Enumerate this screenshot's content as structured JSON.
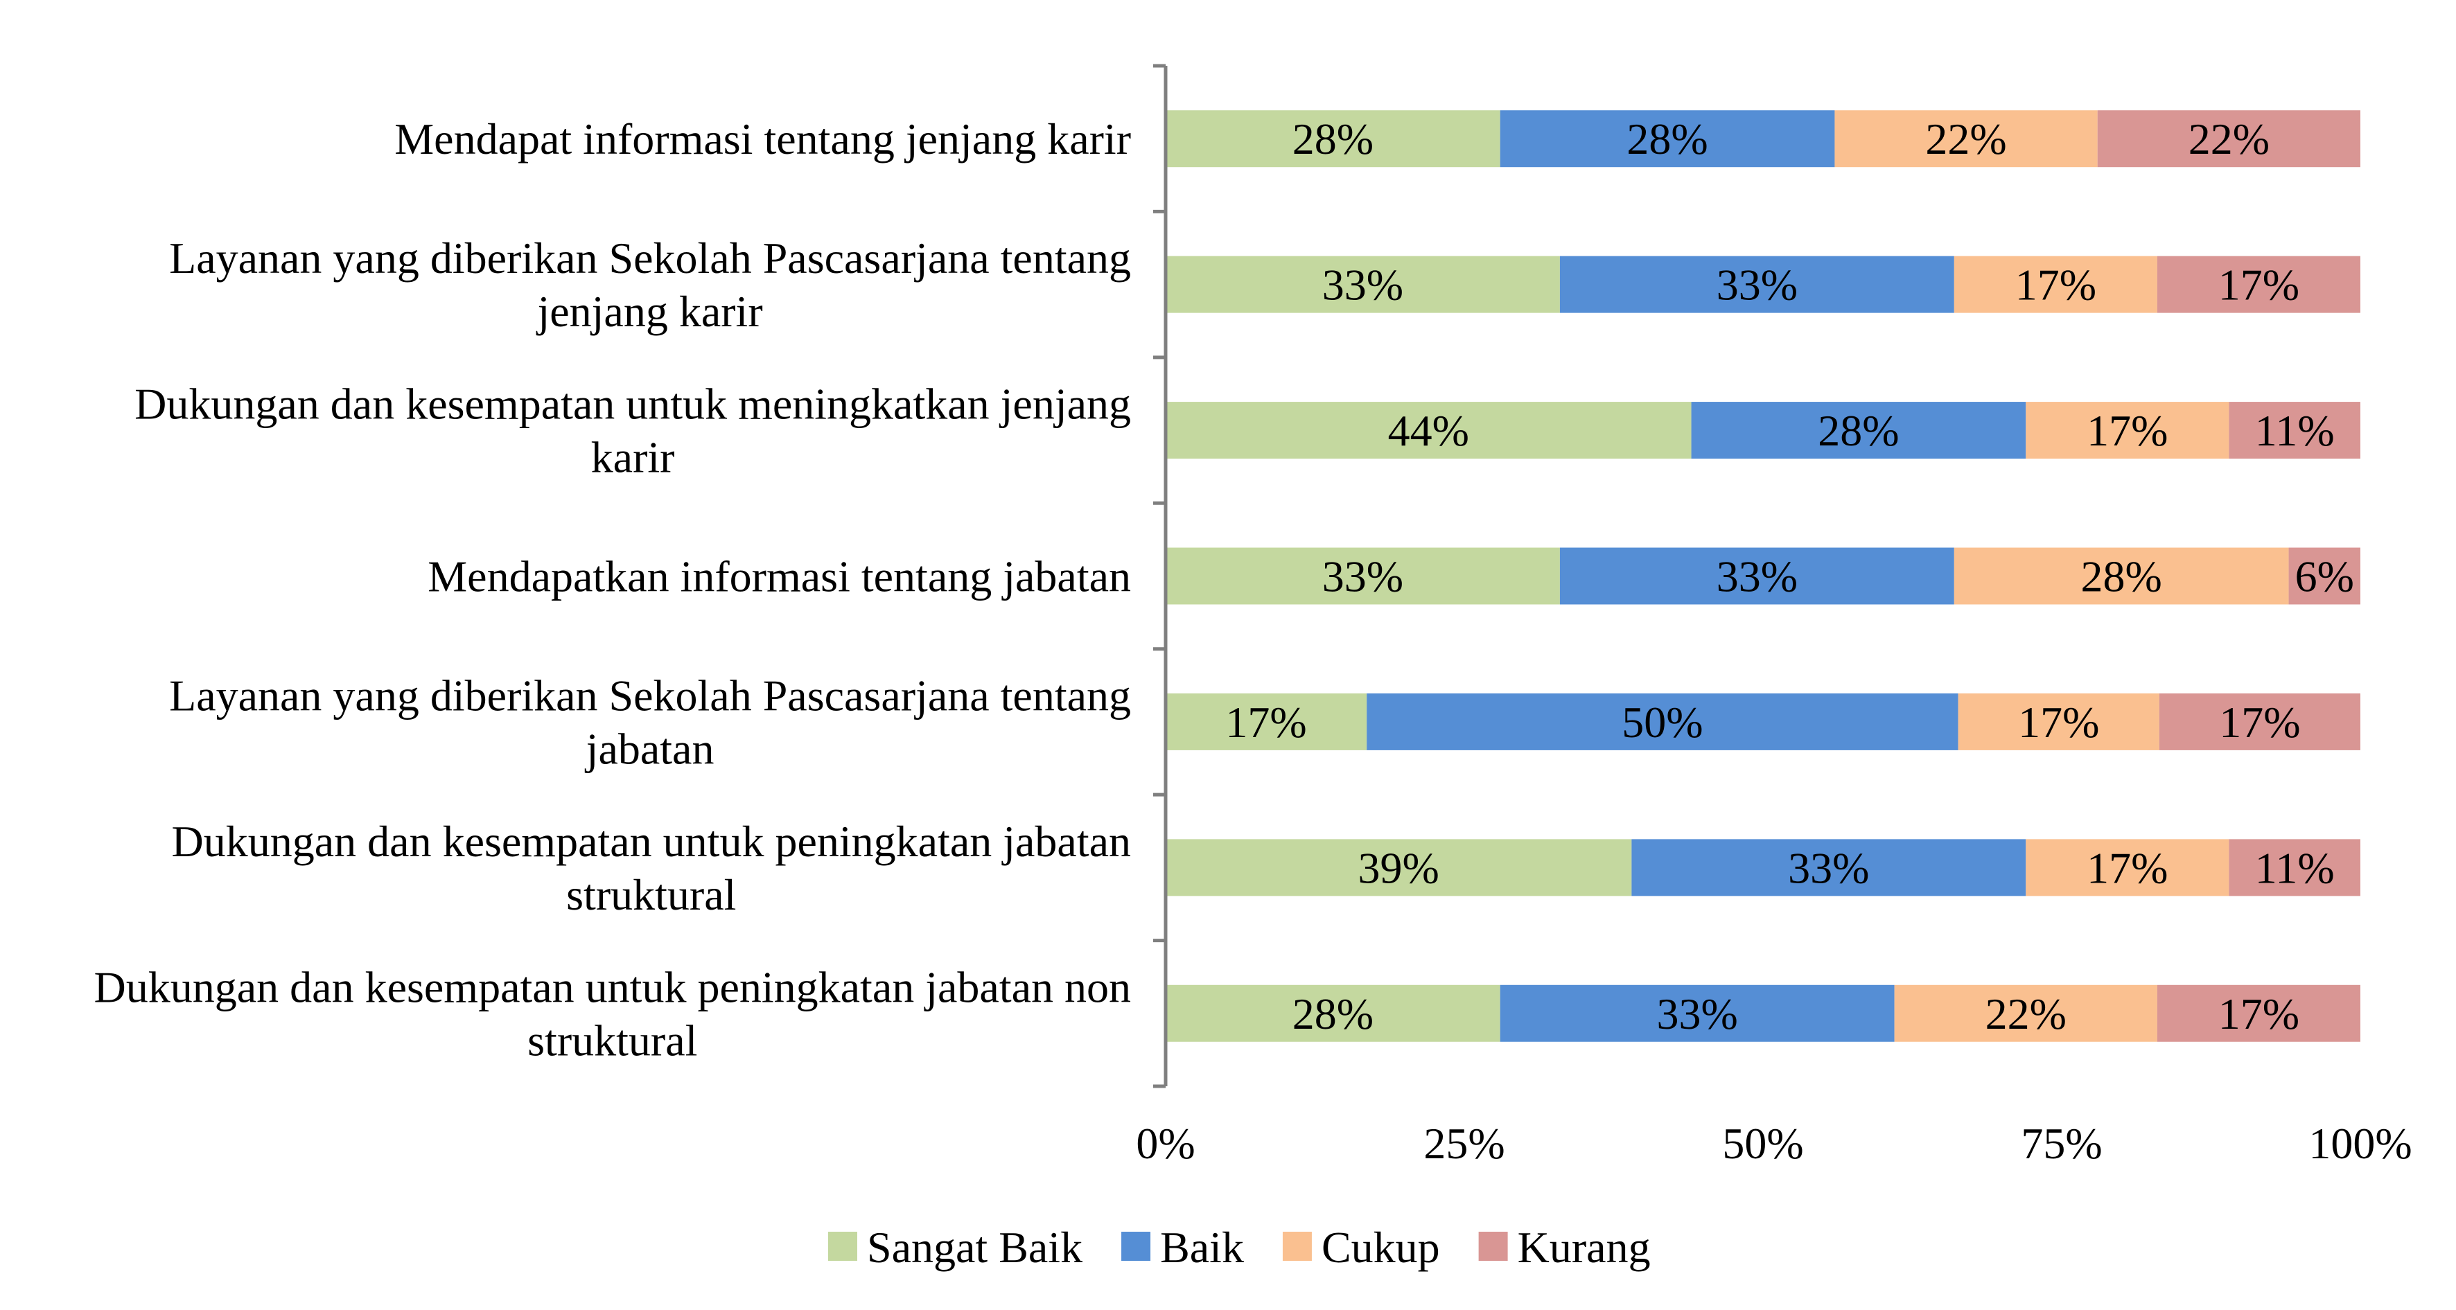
{
  "chart_data": {
    "type": "bar",
    "orientation": "horizontal",
    "stacked": "percent",
    "categories": [
      [
        "Mendapat informasi tentang jenjang karir"
      ],
      [
        "Layanan yang diberikan Sekolah Pascasarjana tentang",
        "jenjang karir"
      ],
      [
        "Dukungan dan kesempatan untuk meningkatkan jenjang",
        "karir"
      ],
      [
        "Mendapatkan informasi tentang jabatan"
      ],
      [
        "Layanan yang diberikan Sekolah Pascasarjana tentang",
        "jabatan"
      ],
      [
        "Dukungan dan kesempatan untuk peningkatan jabatan",
        "struktural"
      ],
      [
        "Dukungan dan kesempatan untuk peningkatan jabatan non",
        "struktural"
      ]
    ],
    "series": [
      {
        "name": "Sangat Baik",
        "color": "#c4d89f",
        "values": [
          28,
          33,
          44,
          33,
          17,
          39,
          28
        ],
        "labels": [
          "28%",
          "33%",
          "44%",
          "33%",
          "17%",
          "39%",
          "28%"
        ]
      },
      {
        "name": "Baik",
        "color": "#558ed5",
        "values": [
          28,
          33,
          28,
          33,
          50,
          33,
          33
        ],
        "labels": [
          "28%",
          "33%",
          "28%",
          "33%",
          "50%",
          "33%",
          "33%"
        ]
      },
      {
        "name": "Cukup",
        "color": "#fac090",
        "values": [
          22,
          17,
          17,
          28,
          17,
          17,
          22
        ],
        "labels": [
          "22%",
          "17%",
          "17%",
          "28%",
          "17%",
          "17%",
          "22%"
        ]
      },
      {
        "name": "Kurang",
        "color": "#d99694",
        "values": [
          22,
          17,
          11,
          6,
          17,
          11,
          17
        ],
        "labels": [
          "22%",
          "17%",
          "11%",
          "6%",
          "17%",
          "11%",
          "17%"
        ]
      }
    ],
    "xlim": [
      0,
      100
    ],
    "x_ticks": [
      "0%",
      "25%",
      "50%",
      "75%",
      "100%"
    ],
    "legend_position": "bottom",
    "grid": false
  }
}
